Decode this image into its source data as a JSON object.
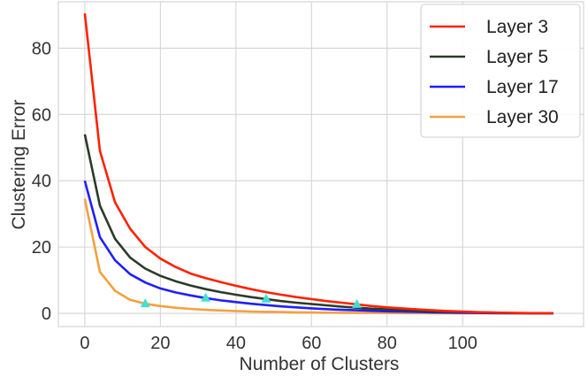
{
  "chart_data": {
    "type": "line",
    "title": "",
    "xlabel": "Number of Clusters",
    "ylabel": "Clustering Error",
    "xlim": [
      -7,
      132
    ],
    "ylim": [
      -4,
      94
    ],
    "x_ticks": [
      0,
      20,
      40,
      60,
      80,
      100
    ],
    "y_ticks": [
      0,
      20,
      40,
      60,
      80
    ],
    "grid": true,
    "legend_position": "top-right",
    "x": [
      0,
      4,
      8,
      12,
      16,
      20,
      24,
      28,
      32,
      36,
      40,
      44,
      48,
      52,
      56,
      60,
      64,
      68,
      72,
      76,
      80,
      84,
      88,
      92,
      96,
      100,
      104,
      108,
      112,
      116,
      120,
      124
    ],
    "series": [
      {
        "name": "Layer 3",
        "color": "#ff2200",
        "values": [
          90.5,
          49,
          33.5,
          25.5,
          20,
          16.5,
          14,
          12,
          10.6,
          9.4,
          8.3,
          7.3,
          6.4,
          5.6,
          4.9,
          4.3,
          3.7,
          3.2,
          2.7,
          2.2,
          1.8,
          1.5,
          1.2,
          0.9,
          0.7,
          0.5,
          0.35,
          0.25,
          0.15,
          0.08,
          0.03,
          0
        ]
      },
      {
        "name": "Layer 5",
        "color": "#2b3b2b",
        "values": [
          54,
          32.5,
          22.5,
          16.8,
          13.5,
          11.3,
          9.7,
          8.4,
          7.3,
          6.4,
          5.6,
          4.9,
          4.3,
          3.7,
          3.2,
          2.8,
          2.4,
          2.0,
          1.7,
          1.4,
          1.2,
          1.0,
          0.8,
          0.6,
          0.5,
          0.4,
          0.3,
          0.2,
          0.12,
          0.06,
          0.02,
          0
        ]
      },
      {
        "name": "Layer 17",
        "color": "#1f1fff",
        "values": [
          40,
          23,
          16,
          11.8,
          9.3,
          7.5,
          6.3,
          5.4,
          4.6,
          3.9,
          3.4,
          2.9,
          2.5,
          2.1,
          1.8,
          1.5,
          1.25,
          1.05,
          0.9,
          0.75,
          0.6,
          0.5,
          0.4,
          0.3,
          0.22,
          0.15,
          0.1,
          0.06,
          0.03,
          0.01,
          0,
          0
        ]
      },
      {
        "name": "Layer 30",
        "color": "#f5a040",
        "values": [
          34.5,
          12.5,
          6.8,
          4.1,
          2.9,
          2.2,
          1.7,
          1.35,
          1.05,
          0.85,
          0.7,
          0.55,
          0.45,
          0.38,
          0.3,
          0.25,
          0.2,
          0.16,
          0.12,
          0.1,
          0.08,
          0.06,
          0.05,
          0.04,
          0.03,
          0.02,
          0.01,
          0.01,
          0,
          0,
          0,
          0
        ]
      }
    ],
    "markers": {
      "shape": "triangle",
      "color": "#40e0d0",
      "points": [
        {
          "x": 16,
          "y": 2.9
        },
        {
          "x": 32,
          "y": 4.6
        },
        {
          "x": 48,
          "y": 4.3
        },
        {
          "x": 72,
          "y": 2.7
        }
      ]
    }
  }
}
